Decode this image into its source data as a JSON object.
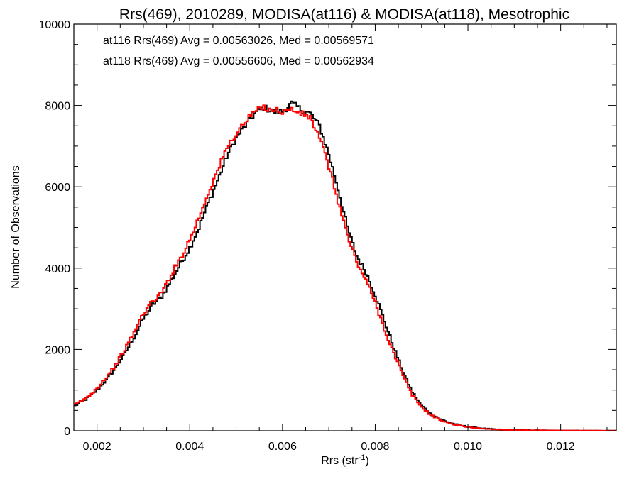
{
  "chart_data": {
    "type": "line",
    "title": "Rrs(469), 2010289, MODISA(at116) & MODISA(at118), Mesotrophic",
    "xlabel": "Rrs (str",
    "xlabel_sup": "-1",
    "xlabel_close": ")",
    "ylabel": "Number of Observations",
    "xlim": [
      0.0015,
      0.0132
    ],
    "ylim": [
      0,
      10000
    ],
    "xticks": [
      "0.002",
      "0.004",
      "0.006",
      "0.008",
      "0.010",
      "0.012"
    ],
    "yticks": [
      "0",
      "2000",
      "4000",
      "6000",
      "8000",
      "10000"
    ],
    "grid": false,
    "step": true,
    "annotations": [
      {
        "text": "at116 Rrs(469) Avg = 0.00563026, Med = 0.00569571",
        "color": "#000000"
      },
      {
        "text": "at118 Rrs(469) Avg = 0.00556606, Med = 0.00562934",
        "color": "#ff0000"
      }
    ],
    "series": [
      {
        "color": "#000000",
        "x": [
          0.0015,
          0.0018,
          0.002,
          0.0022,
          0.0024,
          0.0026,
          0.0028,
          0.003,
          0.0032,
          0.0034,
          0.0036,
          0.0038,
          0.004,
          0.0042,
          0.0044,
          0.0046,
          0.0048,
          0.005,
          0.0052,
          0.0054,
          0.0056,
          0.0058,
          0.006,
          0.0062,
          0.0064,
          0.0066,
          0.0068,
          0.007,
          0.0072,
          0.0074,
          0.0076,
          0.0078,
          0.008,
          0.0082,
          0.0084,
          0.0086,
          0.0088,
          0.009,
          0.0092,
          0.0094,
          0.0096,
          0.0098,
          0.01,
          0.0102,
          0.0104,
          0.0106,
          0.0108,
          0.011,
          0.0112,
          0.0116,
          0.012,
          0.0124,
          0.0128,
          0.0132
        ],
        "y": [
          600,
          800,
          1000,
          1250,
          1550,
          1900,
          2300,
          2750,
          3100,
          3300,
          3700,
          4100,
          4500,
          5000,
          5600,
          6150,
          6750,
          7200,
          7500,
          7800,
          7950,
          7850,
          7850,
          8050,
          7900,
          7800,
          7500,
          6800,
          5950,
          5000,
          4300,
          3900,
          3350,
          2700,
          2050,
          1450,
          950,
          620,
          420,
          290,
          200,
          140,
          100,
          70,
          50,
          35,
          28,
          20,
          15,
          10,
          6,
          4,
          3,
          2
        ]
      },
      {
        "color": "#ff0000",
        "x": [
          0.0015,
          0.0018,
          0.002,
          0.0022,
          0.0024,
          0.0026,
          0.0028,
          0.003,
          0.0032,
          0.0034,
          0.0036,
          0.0038,
          0.004,
          0.0042,
          0.0044,
          0.0046,
          0.0048,
          0.005,
          0.0052,
          0.0054,
          0.0056,
          0.0058,
          0.006,
          0.0062,
          0.0064,
          0.0066,
          0.0068,
          0.007,
          0.0072,
          0.0074,
          0.0076,
          0.0078,
          0.008,
          0.0082,
          0.0084,
          0.0086,
          0.0088,
          0.009,
          0.0092,
          0.0094,
          0.0096,
          0.0098,
          0.01,
          0.0102,
          0.0104,
          0.0106,
          0.0108,
          0.011,
          0.0112,
          0.0116,
          0.012,
          0.0124,
          0.0128,
          0.0132
        ],
        "y": [
          620,
          830,
          1050,
          1320,
          1620,
          2000,
          2420,
          2900,
          3180,
          3400,
          3850,
          4250,
          4700,
          5250,
          5850,
          6400,
          6950,
          7300,
          7600,
          7850,
          7950,
          7900,
          7850,
          7900,
          7800,
          7700,
          7200,
          6500,
          5650,
          4800,
          4150,
          3700,
          3150,
          2500,
          1900,
          1350,
          880,
          580,
          390,
          270,
          180,
          130,
          90,
          65,
          45,
          32,
          25,
          18,
          13,
          9,
          5,
          4,
          3,
          2
        ]
      }
    ]
  }
}
